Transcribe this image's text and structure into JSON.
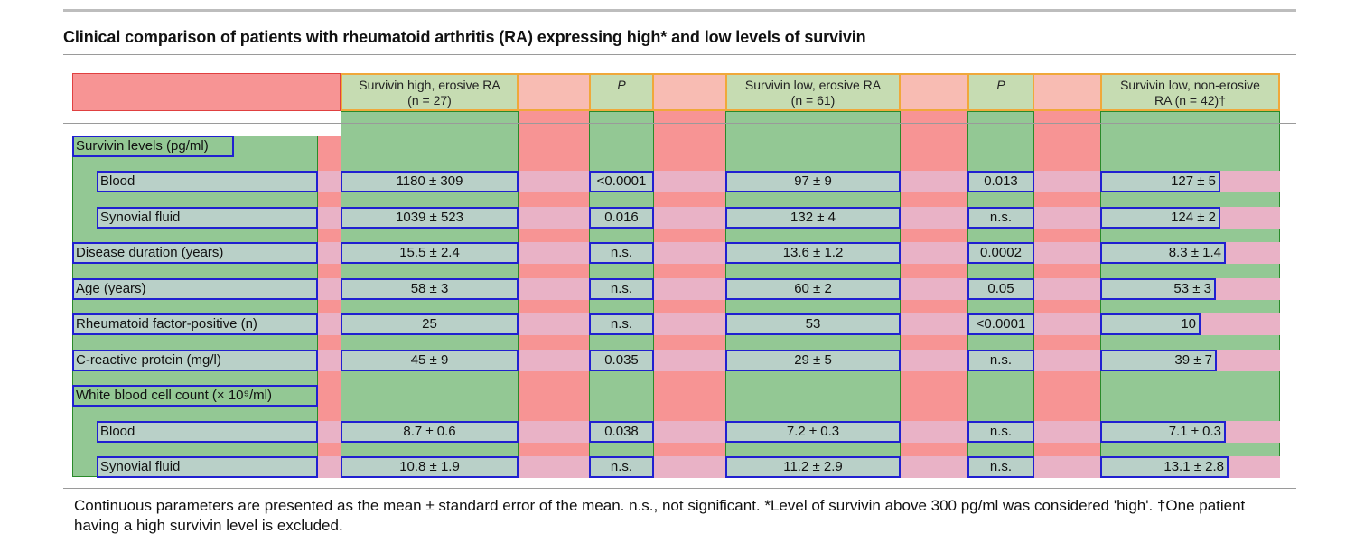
{
  "title": "Clinical comparison of patients with rheumatoid arthritis (RA) expressing high* and low levels of survivin",
  "columns": {
    "high_erosive_1": "Survivin high, erosive RA",
    "high_erosive_2": "(n = 27)",
    "p1": "P",
    "low_erosive_1": "Survivin low, erosive RA",
    "low_erosive_2": "(n = 61)",
    "p2": "P",
    "low_nonerosive_1": "Survivin low, non-erosive",
    "low_nonerosive_2": "RA (n = 42)†"
  },
  "rows": {
    "survivin_levels": "Survivin levels (pg/ml)",
    "blood1": {
      "label": "Blood",
      "high": "1180 ± 309",
      "p1": "<0.0001",
      "low": "97 ± 9",
      "p2": "0.013",
      "nonerosive": "127 ± 5"
    },
    "synovial1": {
      "label": "Synovial fluid",
      "high": "1039 ± 523",
      "p1": "0.016",
      "low": "132 ± 4",
      "p2": "n.s.",
      "nonerosive": "124 ± 2"
    },
    "duration": {
      "label": "Disease duration (years)",
      "high": "15.5 ± 2.4",
      "p1": "n.s.",
      "low": "13.6 ± 1.2",
      "p2": "0.0002",
      "nonerosive": "8.3 ± 1.4"
    },
    "age": {
      "label": "Age (years)",
      "high": "58 ± 3",
      "p1": "n.s.",
      "low": "60 ± 2",
      "p2": "0.05",
      "nonerosive": "53 ± 3"
    },
    "rf": {
      "label": "Rheumatoid factor-positive (n)",
      "high": "25",
      "p1": "n.s.",
      "low": "53",
      "p2": "<0.0001",
      "nonerosive": "10"
    },
    "crp": {
      "label": "C-reactive protein (mg/l)",
      "high": "45 ± 9",
      "p1": "0.035",
      "low": "29 ± 5",
      "p2": "n.s.",
      "nonerosive": "39 ± 7"
    },
    "wbc": "White blood cell count (× 10⁹/ml)",
    "blood2": {
      "label": "Blood",
      "high": "8.7 ± 0.6",
      "p1": "0.038",
      "low": "7.2 ± 0.3",
      "p2": "n.s.",
      "nonerosive": "7.1 ± 0.3"
    },
    "synovial2": {
      "label": "Synovial fluid",
      "high": "10.8 ± 1.9",
      "p1": "n.s.",
      "low": "11.2 ± 2.9",
      "p2": "n.s.",
      "nonerosive": "13.1 ± 2.8"
    }
  },
  "footnote": "Continuous parameters are presented as the mean ± standard error of the mean. n.s., not significant. *Level of survivin above 300 pg/ml was considered 'high'. †One patient having a high survivin level is excluded.",
  "colors": {
    "green": "#93c894",
    "red": "#f79494",
    "blue_outline": "#2020d0",
    "orange_outline": "#f0a83a"
  }
}
